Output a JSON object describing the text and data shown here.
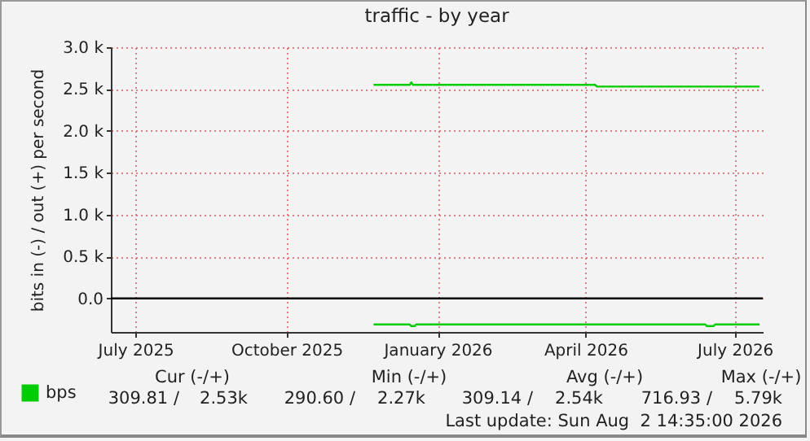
{
  "chart_data": {
    "type": "line",
    "title": "traffic - by year",
    "ylabel": "bits in (-) / out (+) per second",
    "xlim": [
      "2025-07-01",
      "2026-08-02"
    ],
    "xticks": [
      {
        "value": "2025-07-16",
        "label": "July 2025"
      },
      {
        "value": "2025-10-16",
        "label": "October 2025"
      },
      {
        "value": "2026-01-16",
        "label": "January 2026"
      },
      {
        "value": "2026-04-16",
        "label": "April 2026"
      },
      {
        "value": "2026-07-16",
        "label": "July 2026"
      }
    ],
    "ylim": [
      -400,
      3000
    ],
    "yticks": [
      {
        "value": 0,
        "label": "0.0"
      },
      {
        "value": 500,
        "label": "0.5 k"
      },
      {
        "value": 1000,
        "label": "1.0 k"
      },
      {
        "value": 1500,
        "label": "1.5 k"
      },
      {
        "value": 2000,
        "label": "2.0 k"
      },
      {
        "value": 2500,
        "label": "2.5 k"
      },
      {
        "value": 3000,
        "label": "3.0 k"
      }
    ],
    "series": [
      {
        "name": "bps",
        "color": "#00cc00",
        "x": [
          "2025-12-08",
          "2025-12-30",
          "2025-12-31",
          "2026-01-01",
          "2026-04-22",
          "2026-04-23",
          "2026-05-01",
          "2026-07-31"
        ],
        "values": [
          2550,
          2550,
          2580,
          2550,
          2550,
          2530,
          2530,
          2530
        ]
      },
      {
        "color": "#00cc00",
        "x": [
          "2025-12-08",
          "2025-12-30",
          "2025-12-31",
          "2026-01-02",
          "2026-01-03",
          "2026-06-28",
          "2026-06-29",
          "2026-07-03",
          "2026-07-04",
          "2026-07-31"
        ],
        "values": [
          -310,
          -310,
          -330,
          -330,
          -310,
          -310,
          -330,
          -330,
          -310,
          -310
        ]
      }
    ],
    "ref_lines": [
      {
        "axis": "y",
        "value": 0,
        "color": "#000000"
      }
    ],
    "grid": true,
    "legend": "bottom left",
    "annotations": [
      "Cur (-/+)",
      "Min (-/+)",
      "Avg (-/+)",
      "Max (-/+)",
      "309.81 /",
      "2.53k",
      "290.60 /",
      "2.27k",
      "309.14 /",
      "2.54k",
      "716.93 /",
      "5.79k",
      "Last update: Sun Aug  2 14:35:00 2026"
    ]
  }
}
